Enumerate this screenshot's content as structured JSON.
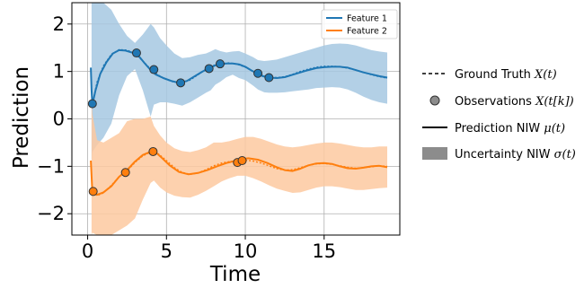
{
  "chart_data": {
    "type": "line",
    "xlabel": "Time",
    "ylabel": "Prediction",
    "xlim": [
      -1.0,
      19.8
    ],
    "ylim": [
      -2.45,
      2.45
    ],
    "xticks": [
      0,
      5,
      10,
      15
    ],
    "yticks": [
      -2,
      -1,
      0,
      1,
      2
    ],
    "xtick_labels": [
      "0",
      "5",
      "10",
      "15"
    ],
    "ytick_labels": [
      "−2",
      "−1",
      "0",
      "1",
      "2"
    ],
    "grid": true,
    "inner_legend_placement": "top-right",
    "series": [
      {
        "name": "Feature 1",
        "color": "#1f77b4",
        "band_color": "#a6c8e2",
        "prediction": {
          "x": [
            0.2,
            0.25,
            0.3,
            0.5,
            0.8,
            1.2,
            1.6,
            2.0,
            2.4,
            2.8,
            3.0,
            3.3,
            3.6,
            4.0,
            4.3,
            4.8,
            5.3,
            5.8,
            6.3,
            6.8,
            7.3,
            7.8,
            8.1,
            8.4,
            8.8,
            9.2,
            9.6,
            10.0,
            10.4,
            10.8,
            11.1,
            11.5,
            12.0,
            12.5,
            13.0,
            13.5,
            14.0,
            14.5,
            15.0,
            15.5,
            16.0,
            16.5,
            17.0,
            17.5,
            18.0,
            18.5,
            19.0
          ],
          "y": [
            1.08,
            0.6,
            0.3,
            0.6,
            0.95,
            1.2,
            1.38,
            1.45,
            1.44,
            1.4,
            1.38,
            1.3,
            1.18,
            1.03,
            0.94,
            0.86,
            0.8,
            0.76,
            0.8,
            0.9,
            1.0,
            1.08,
            1.13,
            1.15,
            1.17,
            1.17,
            1.15,
            1.1,
            1.02,
            0.95,
            0.9,
            0.87,
            0.86,
            0.88,
            0.93,
            0.98,
            1.03,
            1.07,
            1.09,
            1.1,
            1.1,
            1.08,
            1.03,
            0.98,
            0.94,
            0.9,
            0.87
          ]
        },
        "band": {
          "x": [
            0.25,
            0.3,
            0.6,
            1.0,
            1.5,
            2.0,
            2.5,
            3.0,
            3.5,
            4.0,
            4.2,
            4.6,
            5.0,
            5.5,
            6.0,
            6.5,
            7.0,
            7.5,
            7.8,
            8.1,
            8.4,
            8.8,
            9.2,
            9.6,
            10.0,
            10.5,
            10.8,
            11.2,
            11.5,
            12.0,
            12.5,
            13.0,
            13.5,
            14.0,
            14.5,
            15.0,
            15.5,
            16.0,
            16.5,
            17.0,
            17.5,
            18.0,
            18.5,
            19.0
          ],
          "upper": [
            2.45,
            2.45,
            2.45,
            2.45,
            2.3,
            2.0,
            1.75,
            1.6,
            1.78,
            2.0,
            1.93,
            1.7,
            1.55,
            1.38,
            1.28,
            1.3,
            1.35,
            1.38,
            1.42,
            1.47,
            1.43,
            1.4,
            1.42,
            1.43,
            1.38,
            1.3,
            1.24,
            1.22,
            1.23,
            1.25,
            1.3,
            1.35,
            1.4,
            1.45,
            1.5,
            1.55,
            1.58,
            1.59,
            1.58,
            1.55,
            1.5,
            1.45,
            1.42,
            1.4
          ],
          "lower": [
            -0.9,
            -0.7,
            -0.55,
            -0.4,
            -0.1,
            0.5,
            0.9,
            1.05,
            0.6,
            0.05,
            0.3,
            0.35,
            0.35,
            0.32,
            0.28,
            0.35,
            0.45,
            0.55,
            0.6,
            0.72,
            0.78,
            0.88,
            0.93,
            0.86,
            0.82,
            0.7,
            0.62,
            0.56,
            0.55,
            0.55,
            0.56,
            0.58,
            0.6,
            0.62,
            0.65,
            0.66,
            0.67,
            0.66,
            0.62,
            0.55,
            0.47,
            0.4,
            0.35,
            0.32
          ]
        },
        "ground_truth": {
          "x": [
            0.3,
            0.6,
            1.0,
            1.5,
            2.0,
            2.5,
            3.0,
            3.5,
            4.0,
            4.5,
            5.0,
            5.5,
            6.0,
            6.5,
            7.0,
            7.5,
            8.0,
            8.5,
            9.0,
            9.5,
            10.0,
            10.5,
            11.0,
            11.5,
            12.0,
            12.5,
            13.0,
            13.5,
            14.0,
            14.5,
            15.0,
            15.5,
            16.0,
            16.5,
            17.0,
            17.5,
            18.0,
            18.5,
            19.0
          ],
          "y": [
            0.32,
            0.78,
            1.12,
            1.36,
            1.46,
            1.45,
            1.38,
            1.22,
            1.05,
            0.92,
            0.83,
            0.77,
            0.76,
            0.82,
            0.93,
            1.05,
            1.13,
            1.17,
            1.18,
            1.15,
            1.09,
            1.0,
            0.93,
            0.88,
            0.87,
            0.89,
            0.94,
            1.0,
            1.05,
            1.09,
            1.11,
            1.11,
            1.1,
            1.07,
            1.03,
            0.98,
            0.93,
            0.89,
            0.86
          ]
        },
        "observations": {
          "x": [
            0.3,
            3.1,
            4.2,
            5.9,
            7.7,
            8.4,
            10.8,
            11.5
          ],
          "y": [
            0.32,
            1.39,
            1.04,
            0.76,
            1.06,
            1.16,
            0.96,
            0.87
          ]
        }
      },
      {
        "name": "Feature 2",
        "color": "#ff7f0e",
        "band_color": "#fdc9a0",
        "prediction": {
          "x": [
            0.2,
            0.25,
            0.3,
            0.6,
            1.0,
            1.5,
            2.0,
            2.5,
            3.0,
            3.5,
            4.0,
            4.3,
            4.7,
            5.2,
            5.8,
            6.4,
            7.0,
            7.6,
            8.2,
            8.8,
            9.3,
            9.7,
            10.2,
            10.8,
            11.4,
            12.0,
            12.5,
            13.0,
            13.5,
            14.0,
            14.5,
            15.0,
            15.5,
            16.0,
            16.5,
            17.0,
            17.5,
            18.0,
            18.5,
            19.0
          ],
          "y": [
            -0.88,
            -1.2,
            -1.55,
            -1.6,
            -1.55,
            -1.42,
            -1.22,
            -1.08,
            -0.9,
            -0.76,
            -0.69,
            -0.7,
            -0.82,
            -0.98,
            -1.12,
            -1.17,
            -1.14,
            -1.08,
            -1.0,
            -0.93,
            -0.89,
            -0.85,
            -0.83,
            -0.86,
            -0.93,
            -1.02,
            -1.08,
            -1.1,
            -1.05,
            -0.98,
            -0.94,
            -0.93,
            -0.95,
            -1.0,
            -1.04,
            -1.05,
            -1.03,
            -1.0,
            -0.99,
            -1.02
          ]
        },
        "band": {
          "x": [
            0.25,
            0.3,
            0.6,
            1.0,
            1.5,
            2.0,
            2.5,
            3.0,
            3.5,
            4.0,
            4.2,
            4.6,
            5.0,
            5.5,
            6.0,
            6.5,
            7.0,
            7.5,
            8.0,
            8.5,
            9.0,
            9.5,
            10.0,
            10.5,
            11.0,
            11.5,
            12.0,
            12.5,
            13.0,
            13.5,
            14.0,
            14.5,
            15.0,
            15.5,
            16.0,
            16.5,
            17.0,
            17.5,
            18.0,
            18.5,
            19.0
          ],
          "upper": [
            0.55,
            0.1,
            -0.45,
            -0.5,
            -0.4,
            -0.3,
            -0.05,
            0.0,
            0.0,
            0.05,
            -0.15,
            -0.35,
            -0.5,
            -0.62,
            -0.68,
            -0.7,
            -0.66,
            -0.6,
            -0.5,
            -0.5,
            -0.47,
            -0.42,
            -0.38,
            -0.38,
            -0.42,
            -0.48,
            -0.54,
            -0.58,
            -0.6,
            -0.58,
            -0.55,
            -0.52,
            -0.5,
            -0.5,
            -0.52,
            -0.55,
            -0.58,
            -0.6,
            -0.6,
            -0.58,
            -0.58
          ],
          "lower": [
            -2.45,
            -2.4,
            -2.45,
            -2.5,
            -2.45,
            -2.35,
            -2.25,
            -2.1,
            -1.7,
            -1.35,
            -1.3,
            -1.45,
            -1.55,
            -1.62,
            -1.65,
            -1.66,
            -1.6,
            -1.52,
            -1.42,
            -1.32,
            -1.25,
            -1.2,
            -1.2,
            -1.25,
            -1.32,
            -1.4,
            -1.47,
            -1.52,
            -1.56,
            -1.55,
            -1.5,
            -1.45,
            -1.42,
            -1.42,
            -1.44,
            -1.47,
            -1.5,
            -1.5,
            -1.48,
            -1.46,
            -1.45
          ]
        },
        "ground_truth": {
          "x": [
            0.3,
            0.6,
            1.0,
            1.5,
            2.0,
            2.5,
            3.0,
            3.5,
            4.0,
            4.5,
            5.0,
            5.5,
            6.0,
            6.5,
            7.0,
            7.5,
            8.0,
            8.5,
            9.0,
            9.5,
            10.0,
            10.5,
            11.0,
            11.5,
            12.0,
            12.5,
            13.0,
            13.5,
            14.0,
            14.5,
            15.0,
            15.5,
            16.0,
            16.5,
            17.0,
            17.5,
            18.0,
            18.5,
            19.0
          ],
          "y": [
            -1.55,
            -1.62,
            -1.56,
            -1.4,
            -1.22,
            -1.1,
            -0.92,
            -0.78,
            -0.7,
            -0.74,
            -0.88,
            -1.03,
            -1.13,
            -1.17,
            -1.14,
            -1.07,
            -0.99,
            -0.93,
            -0.9,
            -0.88,
            -0.87,
            -0.89,
            -0.93,
            -0.99,
            -1.05,
            -1.08,
            -1.07,
            -1.03,
            -0.98,
            -0.95,
            -0.94,
            -0.96,
            -0.99,
            -1.02,
            -1.04,
            -1.03,
            -1.01,
            -0.99,
            -1.0
          ]
        },
        "observations": {
          "x": [
            0.35,
            2.4,
            4.15,
            9.5,
            9.8
          ],
          "y": [
            -1.53,
            -1.13,
            -0.69,
            -0.92,
            -0.88
          ]
        }
      }
    ],
    "side_legend": [
      {
        "kind": "dashed-line",
        "label": "Ground Truth ",
        "math": "X(t)"
      },
      {
        "kind": "marker",
        "label": "Observations ",
        "math": "X(t[k])"
      },
      {
        "kind": "solid-line",
        "label": "Prediction NIW ",
        "math": "μ(t)"
      },
      {
        "kind": "band",
        "label": "Uncertainty NIW ",
        "math": "σ(t)"
      }
    ]
  }
}
